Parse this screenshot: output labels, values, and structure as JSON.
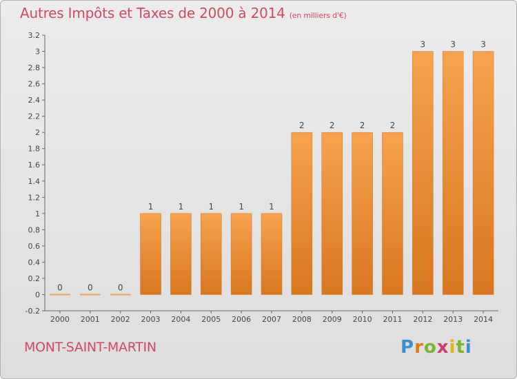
{
  "header": {
    "title": "Autres Impôts et Taxes de 2000 à 2014",
    "unit": "(en milliers d'€)"
  },
  "commune": "MONT-SAINT-MARTIN",
  "logo": {
    "letters": [
      "P",
      "r",
      "o",
      "x",
      "i",
      "t",
      "i"
    ]
  },
  "colors": {
    "title": "#d04a63",
    "bar_top": "#f7a34f",
    "bar_bottom": "#d8771f",
    "axis": "#555555"
  },
  "chart_data": {
    "type": "bar",
    "categories": [
      "2000",
      "2001",
      "2002",
      "2003",
      "2004",
      "2005",
      "2006",
      "2007",
      "2008",
      "2009",
      "2010",
      "2011",
      "2012",
      "2013",
      "2014"
    ],
    "values": [
      0,
      0,
      0,
      1,
      1,
      1,
      1,
      1,
      2,
      2,
      2,
      2,
      3,
      3,
      3
    ],
    "data_labels": [
      "0",
      "0",
      "0",
      "1",
      "1",
      "1",
      "1",
      "1",
      "2",
      "2",
      "2",
      "2",
      "3",
      "3",
      "3"
    ],
    "ylim": [
      -0.2,
      3.2
    ],
    "yticks": [
      "3.2",
      "3",
      "2.8",
      "2.6",
      "2.4",
      "2.2",
      "2",
      "1.8",
      "1.6",
      "1.4",
      "1.2",
      "1",
      "0.8",
      "0.6",
      "0.4",
      "0.2",
      "0",
      "-0.2"
    ],
    "ytick_values": [
      3.2,
      3,
      2.8,
      2.6,
      2.4,
      2.2,
      2,
      1.8,
      1.6,
      1.4,
      1.2,
      1,
      0.8,
      0.6,
      0.4,
      0.2,
      0,
      -0.2
    ],
    "grid": false,
    "legend": "none"
  }
}
